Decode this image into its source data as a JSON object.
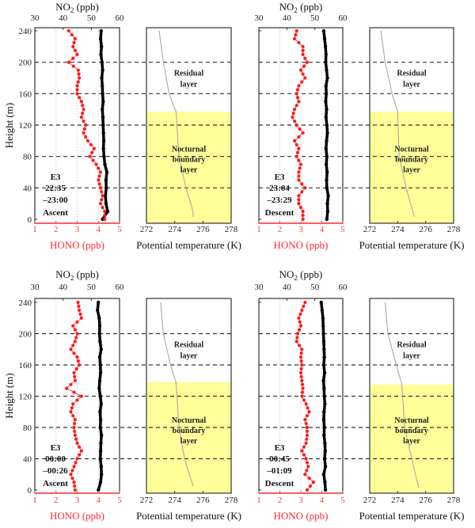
{
  "chart_data": [
    {
      "type": "scatter",
      "panel_label": [
        "E3",
        "22:35",
        "–23:00",
        "Ascent"
      ],
      "heights": [
        240,
        230,
        220,
        210,
        200,
        190,
        180,
        170,
        160,
        150,
        140,
        130,
        120,
        110,
        100,
        90,
        80,
        70,
        60,
        50,
        40,
        30,
        20,
        10,
        0
      ],
      "hono": [
        2.6,
        2.9,
        2.8,
        3.0,
        2.6,
        3.05,
        3.1,
        3.0,
        3.0,
        3.2,
        3.3,
        3.2,
        3.4,
        3.3,
        3.5,
        3.8,
        3.6,
        3.9,
        4.1,
        4.0,
        4.1,
        4.2,
        4.1,
        4.3,
        4.3
      ],
      "no2": [
        53.5,
        53.3,
        53.6,
        53.4,
        53.8,
        54.0,
        53.7,
        53.9,
        54.0,
        54.2,
        53.9,
        54.1,
        54.2,
        54.3,
        54.4,
        54.3,
        54.5,
        54.8,
        55.5,
        55.2,
        55.3,
        55.0,
        55.2,
        55.8,
        54.0
      ],
      "theta": [
        [
          240,
          272.9
        ],
        [
          200,
          273.2
        ],
        [
          160,
          273.6
        ],
        [
          137,
          274.1
        ],
        [
          80,
          274.3
        ],
        [
          40,
          274.8
        ],
        [
          10,
          275.3
        ],
        [
          3,
          275.3
        ]
      ],
      "nbl_top_m": 137
    },
    {
      "type": "scatter",
      "panel_label": [
        "E3",
        "23:04",
        "–23:29",
        "Descent"
      ],
      "heights": [
        240,
        230,
        220,
        210,
        200,
        190,
        180,
        170,
        160,
        150,
        140,
        130,
        120,
        110,
        100,
        90,
        80,
        70,
        60,
        50,
        40,
        30,
        20,
        10,
        0
      ],
      "hono": [
        2.8,
        2.7,
        3.1,
        3.1,
        3.3,
        3.0,
        3.2,
        2.9,
        2.8,
        2.9,
        2.7,
        2.6,
        2.8,
        3.1,
        2.7,
        2.9,
        2.8,
        3.0,
        2.9,
        2.9,
        3.2,
        2.9,
        2.9,
        3.1,
        3.1
      ],
      "no2": [
        53.2,
        53.5,
        53.8,
        54.0,
        53.9,
        54.2,
        54.5,
        54.0,
        54.1,
        53.9,
        54.2,
        54.0,
        54.3,
        54.5,
        54.2,
        54.0,
        54.3,
        54.1,
        54.4,
        54.2,
        54.3,
        54.8,
        54.5,
        54.6,
        54.3
      ],
      "theta": [
        [
          240,
          272.8
        ],
        [
          200,
          273.1
        ],
        [
          160,
          273.6
        ],
        [
          137,
          274.0
        ],
        [
          80,
          274.1
        ],
        [
          40,
          274.6
        ],
        [
          3,
          275.2
        ]
      ],
      "nbl_top_m": 137
    },
    {
      "type": "scatter",
      "panel_label": [
        "E3",
        "00:00",
        "–00:26",
        "Ascent"
      ],
      "heights": [
        240,
        230,
        220,
        210,
        200,
        190,
        180,
        170,
        160,
        150,
        140,
        130,
        120,
        110,
        100,
        90,
        80,
        70,
        60,
        50,
        40,
        30,
        20,
        10,
        0
      ],
      "hono": [
        3.04,
        3.1,
        3.2,
        2.8,
        3.0,
        2.9,
        2.7,
        3.0,
        3.1,
        2.85,
        2.9,
        2.5,
        3.2,
        2.8,
        2.7,
        2.9,
        2.85,
        2.9,
        3.0,
        3.2,
        3.0,
        2.85,
        2.7,
        2.85,
        2.9
      ],
      "no2": [
        52.5,
        52.2,
        52.8,
        53.0,
        52.9,
        53.1,
        53.5,
        53.0,
        53.2,
        53.3,
        53.0,
        52.8,
        53.2,
        53.5,
        53.1,
        53.3,
        53.2,
        53.6,
        53.4,
        53.3,
        53.2,
        53.5,
        53.6,
        53.3,
        52.5
      ],
      "theta": [
        [
          240,
          273.0
        ],
        [
          200,
          273.2
        ],
        [
          160,
          273.7
        ],
        [
          137,
          274.1
        ],
        [
          80,
          274.3
        ],
        [
          40,
          274.7
        ],
        [
          5,
          275.3
        ]
      ],
      "nbl_top_m": 138
    },
    {
      "type": "scatter",
      "panel_label": [
        "E3",
        "00:45",
        "–01:09",
        "Descent"
      ],
      "heights": [
        240,
        230,
        220,
        210,
        200,
        190,
        180,
        170,
        160,
        150,
        140,
        130,
        120,
        110,
        100,
        90,
        80,
        70,
        60,
        50,
        40,
        30,
        20,
        10,
        0
      ],
      "hono": [
        3.2,
        3.05,
        2.9,
        3.0,
        2.85,
        2.8,
        3.05,
        3.0,
        3.05,
        3.0,
        3.05,
        3.1,
        3.05,
        3.25,
        3.4,
        3.2,
        3.3,
        3.3,
        3.25,
        3.05,
        3.25,
        3.35,
        3.2,
        3.6,
        3.3
      ],
      "no2": [
        52.3,
        52.6,
        52.9,
        53.0,
        53.1,
        53.2,
        53.3,
        53.4,
        53.2,
        53.5,
        53.1,
        53.3,
        53.4,
        53.6,
        53.3,
        53.2,
        53.4,
        53.3,
        53.6,
        53.7,
        53.5,
        53.8,
        53.2,
        53.6,
        53.8
      ],
      "theta": [
        [
          240,
          273.1
        ],
        [
          200,
          273.3
        ],
        [
          160,
          273.9
        ],
        [
          135,
          274.3
        ],
        [
          80,
          274.5
        ],
        [
          40,
          275.0
        ],
        [
          3,
          275.5
        ]
      ],
      "nbl_top_m": 135
    }
  ],
  "axes": {
    "y_label": "Height (m)",
    "y_ticks": [
      "0",
      "40",
      "80",
      "120",
      "160",
      "200",
      "240"
    ],
    "y_range": [
      0,
      240
    ],
    "hono_label": "HONO (ppb)",
    "hono_ticks": [
      "1",
      "2",
      "3",
      "4",
      "5"
    ],
    "hono_range": [
      1,
      5
    ],
    "no2_label_main": "NO",
    "no2_label_sub": "2",
    "no2_label_unit": " (ppb)",
    "no2_ticks": [
      "30",
      "40",
      "50",
      "60"
    ],
    "no2_range": [
      30,
      60
    ],
    "theta_label": "Potential temperature (K)",
    "theta_ticks": [
      "272",
      "274",
      "276",
      "278"
    ],
    "theta_range": [
      272,
      278
    ],
    "dashed_heights": [
      40,
      80,
      120,
      160,
      200
    ]
  },
  "layers": {
    "residual": [
      "Residual",
      "layer"
    ],
    "nocturnal": [
      "Nocturnal",
      "boundary",
      "layer"
    ]
  },
  "colors": {
    "hono": "#ff1a1a",
    "no2": "#000000",
    "theta": "#a8a8a8",
    "nbl_fill": "#ffff99"
  }
}
